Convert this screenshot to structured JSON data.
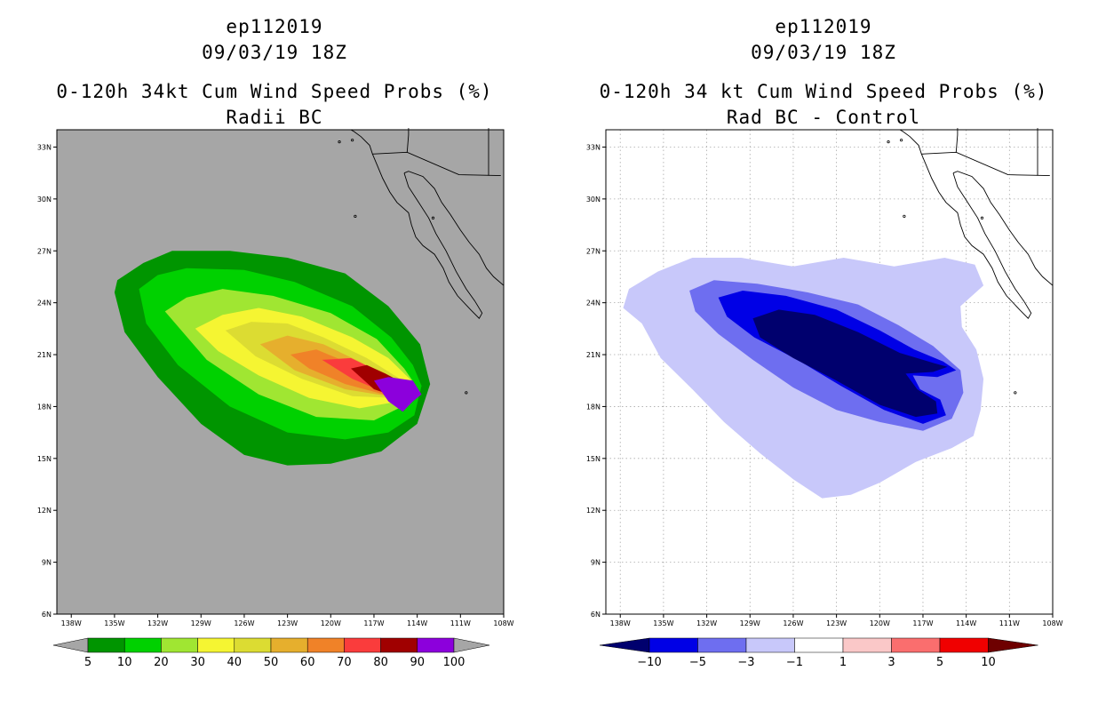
{
  "left": {
    "title_line1": "ep112019",
    "title_line2": "09/03/19 18Z",
    "title_line3": "0-120h 34kt Cum Wind Speed Probs (%)",
    "title_line4": "Radii BC"
  },
  "right": {
    "title_line1": "ep112019",
    "title_line2": "09/03/19 18Z",
    "title_line3": "0-120h 34 kt Cum Wind Speed Probs (%)",
    "title_line4": "Rad BC - Control"
  },
  "chart_data": [
    {
      "type": "heatmap",
      "title": "0-120h 34kt Cum Wind Speed Probs (%) - Radii BC",
      "x_ticks": [
        "138W",
        "135W",
        "132W",
        "129W",
        "126W",
        "123W",
        "120W",
        "117W",
        "114W",
        "111W",
        "108W"
      ],
      "y_ticks": [
        "6N",
        "9N",
        "12N",
        "15N",
        "18N",
        "21N",
        "24N",
        "27N",
        "30N",
        "33N"
      ],
      "xlim": [
        -139,
        -108
      ],
      "ylim": [
        6,
        34
      ],
      "grid": false,
      "colorbar": {
        "levels": [
          5,
          10,
          20,
          30,
          40,
          50,
          60,
          70,
          80,
          90,
          100
        ],
        "labels": [
          "5",
          "10",
          "20",
          "30",
          "40",
          "50",
          "60",
          "70",
          "80",
          "90",
          "100"
        ],
        "colors": [
          "#009500",
          "#00d100",
          "#a0e632",
          "#f5f532",
          "#dcdc32",
          "#e6af2d",
          "#f08228",
          "#fa3c3c",
          "#a00000",
          "#8c00dc"
        ],
        "under_color": "#a6a6a6",
        "over_color": "#a6a6a6"
      },
      "contours": [
        {
          "level": 5,
          "color": "#009500",
          "lonlat": [
            [
              -134.8,
              25.3
            ],
            [
              -133,
              26.3
            ],
            [
              -131,
              27.0
            ],
            [
              -127,
              27.0
            ],
            [
              -123,
              26.6
            ],
            [
              -119,
              25.7
            ],
            [
              -116,
              23.8
            ],
            [
              -113.8,
              21.6
            ],
            [
              -113.1,
              19.3
            ],
            [
              -114,
              17.0
            ],
            [
              -116.5,
              15.4
            ],
            [
              -120,
              14.7
            ],
            [
              -123,
              14.6
            ],
            [
              -126,
              15.2
            ],
            [
              -129,
              17.0
            ],
            [
              -132,
              19.7
            ],
            [
              -134.3,
              22.3
            ],
            [
              -135,
              24.6
            ]
          ]
        },
        {
          "level": 10,
          "color": "#00d100",
          "lonlat": [
            [
              -133.3,
              24.8
            ],
            [
              -132,
              25.6
            ],
            [
              -130,
              26.0
            ],
            [
              -126,
              25.9
            ],
            [
              -122.5,
              25.2
            ],
            [
              -118.5,
              23.8
            ],
            [
              -115.8,
              22.0
            ],
            [
              -114.3,
              20.4
            ],
            [
              -113.7,
              19.2
            ],
            [
              -114.2,
              17.5
            ],
            [
              -116,
              16.5
            ],
            [
              -119,
              16.1
            ],
            [
              -123,
              16.5
            ],
            [
              -127,
              18.0
            ],
            [
              -130.6,
              20.4
            ],
            [
              -132.8,
              22.8
            ]
          ]
        },
        {
          "level": 20,
          "color": "#a0e632",
          "lonlat": [
            [
              -131.5,
              23.5
            ],
            [
              -130,
              24.3
            ],
            [
              -127.5,
              24.8
            ],
            [
              -124,
              24.4
            ],
            [
              -120,
              23.4
            ],
            [
              -116.8,
              21.9
            ],
            [
              -114.9,
              20.2
            ],
            [
              -114.0,
              19.1
            ],
            [
              -114.8,
              18.1
            ],
            [
              -117,
              17.2
            ],
            [
              -121,
              17.4
            ],
            [
              -125,
              18.7
            ],
            [
              -128.6,
              20.7
            ]
          ]
        },
        {
          "level": 30,
          "color": "#f5f532",
          "lonlat": [
            [
              -129.4,
              22.5
            ],
            [
              -127.5,
              23.3
            ],
            [
              -125,
              23.7
            ],
            [
              -122,
              23.2
            ],
            [
              -118.5,
              22.0
            ],
            [
              -116,
              20.8
            ],
            [
              -114.4,
              19.5
            ],
            [
              -114.1,
              19.0
            ],
            [
              -115.3,
              18.3
            ],
            [
              -118,
              17.9
            ],
            [
              -121.5,
              18.5
            ],
            [
              -125,
              19.8
            ],
            [
              -127.8,
              21.2
            ]
          ]
        },
        {
          "level": 40,
          "color": "#dcdc32",
          "lonlat": [
            [
              -127.3,
              22.4
            ],
            [
              -125.5,
              22.9
            ],
            [
              -123,
              22.8
            ],
            [
              -120.5,
              22.0
            ],
            [
              -117.5,
              20.8
            ],
            [
              -115.2,
              19.6
            ],
            [
              -114.2,
              19.0
            ],
            [
              -115.6,
              18.5
            ],
            [
              -118.5,
              18.6
            ],
            [
              -122,
              19.6
            ],
            [
              -125.2,
              20.9
            ]
          ]
        },
        {
          "level": 50,
          "color": "#e6af2d",
          "lonlat": [
            [
              -124.9,
              21.6
            ],
            [
              -123,
              22.1
            ],
            [
              -120.5,
              21.6
            ],
            [
              -118,
              20.6
            ],
            [
              -115.6,
              19.5
            ],
            [
              -114.3,
              19.0
            ],
            [
              -116,
              18.6
            ],
            [
              -119,
              19.0
            ],
            [
              -122.5,
              20.1
            ]
          ]
        },
        {
          "level": 60,
          "color": "#f08228",
          "lonlat": [
            [
              -122.8,
              21.0
            ],
            [
              -121,
              21.3
            ],
            [
              -118.7,
              20.5
            ],
            [
              -116.3,
              19.6
            ],
            [
              -114.4,
              19.0
            ],
            [
              -116.3,
              18.7
            ],
            [
              -119,
              19.3
            ],
            [
              -121.5,
              20.2
            ]
          ]
        },
        {
          "level": 70,
          "color": "#fa3c3c",
          "lonlat": [
            [
              -120.6,
              20.7
            ],
            [
              -118.6,
              20.8
            ],
            [
              -116.6,
              20.0
            ],
            [
              -114.7,
              19.2
            ],
            [
              -114.3,
              18.9
            ],
            [
              -116.5,
              18.9
            ],
            [
              -118.5,
              19.6
            ]
          ]
        },
        {
          "level": 80,
          "color": "#a00000",
          "lonlat": [
            [
              -118.6,
              20.2
            ],
            [
              -117.5,
              20.4
            ],
            [
              -116.2,
              19.9
            ],
            [
              -114.6,
              19.2
            ],
            [
              -115.6,
              18.6
            ],
            [
              -117.0,
              19.0
            ]
          ]
        },
        {
          "level": 90,
          "color": "#8c00dc",
          "lonlat": [
            [
              -117.0,
              19.5
            ],
            [
              -116.0,
              19.7
            ],
            [
              -114.3,
              19.5
            ],
            [
              -113.7,
              18.7
            ],
            [
              -114.3,
              18.3
            ],
            [
              -115.0,
              17.7
            ],
            [
              -116.0,
              18.3
            ]
          ]
        }
      ]
    },
    {
      "type": "heatmap",
      "title": "0-120h 34 kt Cum Wind Speed Probs (%) - Rad BC - Control",
      "x_ticks": [
        "138W",
        "135W",
        "132W",
        "129W",
        "126W",
        "123W",
        "120W",
        "117W",
        "114W",
        "111W",
        "108W"
      ],
      "y_ticks": [
        "6N",
        "9N",
        "12N",
        "15N",
        "18N",
        "21N",
        "24N",
        "27N",
        "30N",
        "33N"
      ],
      "xlim": [
        -139,
        -108
      ],
      "ylim": [
        6,
        34
      ],
      "grid": true,
      "colorbar": {
        "levels": [
          -10,
          -5,
          -3,
          -1,
          1,
          3,
          5,
          10
        ],
        "labels": [
          "-10",
          "-5",
          "-3",
          "-1",
          "1",
          "3",
          "5",
          "10"
        ],
        "colors": [
          "#0000e6",
          "#6e6ef0",
          "#c8c8fa",
          "#ffffff",
          "#fac8c8",
          "#fa6e6e",
          "#f00000"
        ],
        "under_color": "#00006e",
        "over_color": "#6e0000"
      },
      "contours": [
        {
          "level": -1,
          "color": "#c8c8fa",
          "lonlat": [
            [
              -137.4,
              24.8
            ],
            [
              -135.4,
              25.8
            ],
            [
              -133,
              26.6
            ],
            [
              -129.6,
              26.6
            ],
            [
              -126,
              26.1
            ],
            [
              -122.5,
              26.6
            ],
            [
              -119,
              26.1
            ],
            [
              -115.5,
              26.6
            ],
            [
              -113.4,
              26.2
            ],
            [
              -112.8,
              25.0
            ],
            [
              -114.4,
              23.8
            ],
            [
              -114.3,
              22.6
            ],
            [
              -113.3,
              21.3
            ],
            [
              -112.8,
              19.6
            ],
            [
              -113.0,
              17.8
            ],
            [
              -113.5,
              16.3
            ],
            [
              -115,
              15.6
            ],
            [
              -117.5,
              14.8
            ],
            [
              -120,
              13.6
            ],
            [
              -122,
              12.9
            ],
            [
              -124,
              12.7
            ],
            [
              -126,
              13.8
            ],
            [
              -128.3,
              15.3
            ],
            [
              -130.8,
              17.1
            ],
            [
              -133,
              19.0
            ],
            [
              -135.2,
              20.8
            ],
            [
              -136.5,
              22.8
            ],
            [
              -137.8,
              23.7
            ]
          ]
        },
        {
          "level": -3,
          "color": "#6e6ef0",
          "lonlat": [
            [
              -133.2,
              24.7
            ],
            [
              -131.5,
              25.3
            ],
            [
              -128.5,
              25.1
            ],
            [
              -125,
              24.6
            ],
            [
              -121.5,
              23.9
            ],
            [
              -118.7,
              22.7
            ],
            [
              -116.3,
              21.5
            ],
            [
              -114.4,
              20.1
            ],
            [
              -114.2,
              18.8
            ],
            [
              -115,
              17.3
            ],
            [
              -117,
              16.6
            ],
            [
              -120,
              17.1
            ],
            [
              -123,
              17.8
            ],
            [
              -126,
              19.1
            ],
            [
              -128.8,
              20.7
            ],
            [
              -131.2,
              22.2
            ],
            [
              -132.8,
              23.5
            ]
          ]
        },
        {
          "level": -5,
          "color": "#0000e6",
          "lonlat": [
            [
              -131.2,
              24.3
            ],
            [
              -129.5,
              24.7
            ],
            [
              -126.5,
              24.4
            ],
            [
              -123,
              23.6
            ],
            [
              -120,
              22.4
            ],
            [
              -117.6,
              21.3
            ],
            [
              -115.6,
              20.6
            ],
            [
              -114.7,
              20.1
            ],
            [
              -116,
              19.7
            ],
            [
              -117.7,
              19.8
            ],
            [
              -117.2,
              19.0
            ],
            [
              -115.8,
              18.4
            ],
            [
              -115.4,
              17.5
            ],
            [
              -117,
              17.0
            ],
            [
              -119.7,
              17.8
            ],
            [
              -122.7,
              19.2
            ],
            [
              -125.7,
              20.7
            ],
            [
              -128.7,
              22.0
            ],
            [
              -130.6,
              23.2
            ]
          ]
        },
        {
          "level": -10,
          "color": "#00006e",
          "lonlat": [
            [
              -128.8,
              23.1
            ],
            [
              -127,
              23.6
            ],
            [
              -124.5,
              23.3
            ],
            [
              -121.5,
              22.3
            ],
            [
              -118.6,
              21.1
            ],
            [
              -116.2,
              20.5
            ],
            [
              -115.3,
              20.3
            ],
            [
              -116.3,
              20.0
            ],
            [
              -118.2,
              19.9
            ],
            [
              -117.4,
              19.0
            ],
            [
              -116.1,
              18.3
            ],
            [
              -116.0,
              17.6
            ],
            [
              -117.5,
              17.4
            ],
            [
              -120,
              18.1
            ],
            [
              -123,
              19.5
            ],
            [
              -126,
              20.8
            ],
            [
              -128.3,
              22.0
            ]
          ]
        }
      ]
    }
  ]
}
